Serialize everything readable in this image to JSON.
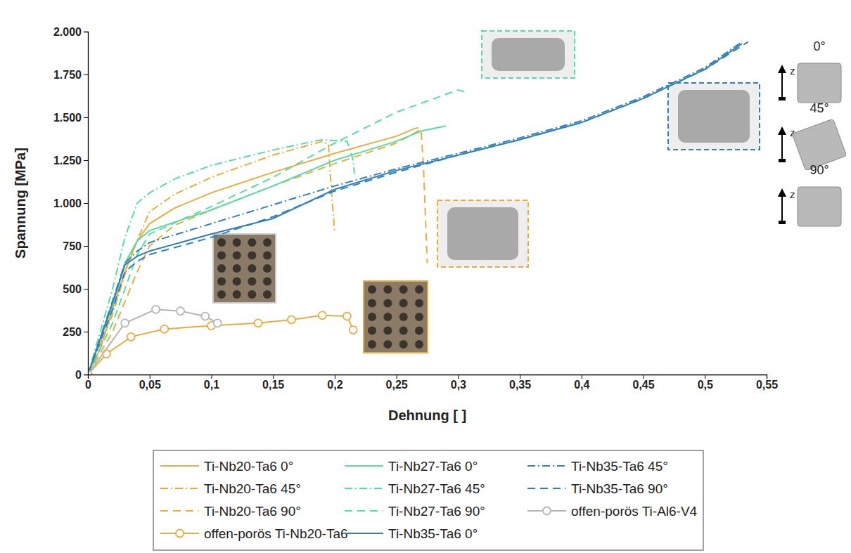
{
  "chart_data": {
    "type": "line",
    "x_label": "Dehnung [ ]",
    "y_label": "Spannung [MPa]",
    "xlim": [
      0,
      0.55
    ],
    "ylim": [
      0,
      2000
    ],
    "xticks": [
      0,
      {
        "value": 0.05,
        "label": "0,05"
      },
      {
        "value": 0.1,
        "label": "0,1"
      },
      {
        "value": 0.15,
        "label": "0,15"
      },
      {
        "value": 0.2,
        "label": "0,2"
      },
      {
        "value": 0.25,
        "label": "0,25"
      },
      {
        "value": 0.3,
        "label": "0,3"
      },
      {
        "value": 0.35,
        "label": "0,35"
      },
      {
        "value": 0.4,
        "label": "0,4"
      },
      {
        "value": 0.45,
        "label": "0,45"
      },
      {
        "value": 0.5,
        "label": "0,5"
      },
      {
        "value": 0.55,
        "label": "0,55"
      }
    ],
    "yticks": [
      0,
      250,
      500,
      750,
      {
        "value": 1000,
        "label": "1.000"
      },
      {
        "value": 1250,
        "label": "1.250"
      },
      {
        "value": 1500,
        "label": "1.500"
      },
      {
        "value": 1750,
        "label": "1.750"
      },
      {
        "value": 2000,
        "label": "2.000"
      }
    ],
    "grid": false,
    "legend": "bottom",
    "annotations": [
      "z",
      "0°",
      "z",
      "45°",
      "z",
      "90°"
    ],
    "series": [
      {
        "name": "Ti-Nb20-Ta6 0°",
        "color": "#e8ad3e",
        "line_style": "solid",
        "x": [
          0,
          0.01,
          0.02,
          0.03,
          0.04,
          0.05,
          0.07,
          0.1,
          0.15,
          0.2,
          0.25,
          0.265,
          0.268
        ],
        "values": [
          0,
          150,
          380,
          600,
          780,
          880,
          970,
          1060,
          1180,
          1290,
          1390,
          1435,
          1440
        ]
      },
      {
        "name": "Ti-Nb20-Ta6 45°",
        "color": "#e8ad3e",
        "line_style": "dashdot",
        "x": [
          0,
          0.02,
          0.035,
          0.05,
          0.07,
          0.1,
          0.15,
          0.19,
          0.195,
          0.197,
          0.2
        ],
        "values": [
          0,
          350,
          700,
          950,
          1050,
          1150,
          1280,
          1360,
          1340,
          1100,
          830
        ]
      },
      {
        "name": "Ti-Nb20-Ta6 90°",
        "color": "#e8ad3e",
        "line_style": "dashed",
        "x": [
          0,
          0.02,
          0.04,
          0.05,
          0.07,
          0.1,
          0.15,
          0.2,
          0.25,
          0.27,
          0.272,
          0.275
        ],
        "values": [
          0,
          250,
          600,
          750,
          870,
          960,
          1100,
          1230,
          1350,
          1430,
          1200,
          650
        ]
      },
      {
        "name": "offen-porös Ti-Nb20-Ta6",
        "color": "#e8ad3e",
        "line_style": "solid",
        "marker": "circle",
        "x": [
          0,
          0.015,
          0.035,
          0.062,
          0.1,
          0.138,
          0.165,
          0.19,
          0.21,
          0.215
        ],
        "values": [
          0,
          120,
          220,
          265,
          285,
          300,
          320,
          345,
          340,
          260
        ]
      },
      {
        "name": "Ti-Nb27-Ta6 0°",
        "color": "#57dca6",
        "line_style": "solid",
        "x": [
          0,
          0.02,
          0.03,
          0.04,
          0.05,
          0.1,
          0.15,
          0.2,
          0.25,
          0.27,
          0.29
        ],
        "values": [
          0,
          400,
          650,
          780,
          840,
          960,
          1100,
          1250,
          1360,
          1420,
          1450
        ]
      },
      {
        "name": "Ti-Nb27-Ta6 45°",
        "color": "#57dca6",
        "line_style": "dashdot",
        "x": [
          0,
          0.02,
          0.03,
          0.04,
          0.05,
          0.07,
          0.1,
          0.15,
          0.19,
          0.21,
          0.215,
          0.216
        ],
        "values": [
          0,
          500,
          800,
          1000,
          1060,
          1140,
          1220,
          1310,
          1370,
          1360,
          1250,
          1170
        ]
      },
      {
        "name": "Ti-Nb27-Ta6 90°",
        "color": "#57dca6",
        "line_style": "dashed",
        "x": [
          0,
          0.02,
          0.04,
          0.05,
          0.1,
          0.15,
          0.2,
          0.25,
          0.3,
          0.305
        ],
        "values": [
          0,
          300,
          700,
          820,
          980,
          1150,
          1350,
          1530,
          1660,
          1650
        ]
      },
      {
        "name": "Ti-Nb35-Ta6 0°",
        "color": "#2f80bd",
        "line_style": "solid",
        "x": [
          0,
          0.02,
          0.03,
          0.04,
          0.05,
          0.1,
          0.15,
          0.2,
          0.25,
          0.3,
          0.35,
          0.4,
          0.45,
          0.5,
          0.53
        ],
        "values": [
          0,
          420,
          640,
          690,
          720,
          820,
          910,
          1080,
          1190,
          1280,
          1370,
          1470,
          1610,
          1780,
          1930
        ]
      },
      {
        "name": "Ti-Nb35-Ta6 45°",
        "color": "#2f80bd",
        "line_style": "dashdot",
        "x": [
          0,
          0.02,
          0.03,
          0.04,
          0.05,
          0.1,
          0.15,
          0.2,
          0.25,
          0.3,
          0.35,
          0.4,
          0.45,
          0.5,
          0.53
        ],
        "values": [
          0,
          430,
          650,
          720,
          770,
          880,
          990,
          1100,
          1200,
          1290,
          1380,
          1480,
          1620,
          1790,
          1940
        ]
      },
      {
        "name": "Ti-Nb35-Ta6 90°",
        "color": "#2f80bd",
        "line_style": "dashed",
        "x": [
          0,
          0.02,
          0.03,
          0.04,
          0.05,
          0.1,
          0.15,
          0.2,
          0.25,
          0.3,
          0.35,
          0.4,
          0.45,
          0.5,
          0.535
        ],
        "values": [
          0,
          380,
          600,
          660,
          700,
          800,
          920,
          1070,
          1180,
          1280,
          1370,
          1470,
          1610,
          1780,
          1940
        ]
      },
      {
        "name": "offen-porös Ti-Al6-V4",
        "color": "#b5b5b5",
        "line_style": "solid",
        "marker": "circle",
        "x": [
          0,
          0.03,
          0.055,
          0.075,
          0.095,
          0.105
        ],
        "values": [
          0,
          300,
          380,
          370,
          340,
          300
        ]
      }
    ]
  }
}
